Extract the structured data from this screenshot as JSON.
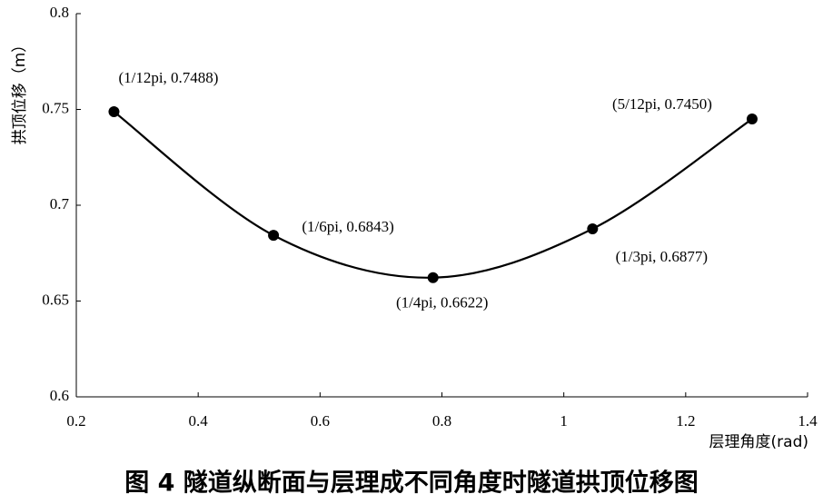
{
  "chart_data": {
    "type": "line",
    "x_label": "层理角度(rad)",
    "y_label": "拱顶位移（m）",
    "caption": "图 4  隧道纵断面与层理成不同角度时隧道拱顶位移图",
    "x": [
      0.2618,
      0.5236,
      0.7854,
      1.0472,
      1.309
    ],
    "series": [
      {
        "color": "#000000",
        "values": [
          0.7488,
          0.6843,
          0.6622,
          0.6877,
          0.745
        ],
        "value_labels": [
          "(1/12pi, 0.7488)",
          "(1/6pi, 0.6843)",
          "(1/4pi, 0.6622)",
          "(1/3pi, 0.6877)",
          "(5/12pi, 0.7450)"
        ]
      }
    ],
    "xlim": [
      0.2,
      1.4
    ],
    "xticks": [
      0.2,
      0.4,
      0.6,
      0.8,
      1,
      1.2,
      1.4
    ],
    "ylim": [
      0.6,
      0.8
    ],
    "yticks": [
      0.6,
      0.65,
      0.7,
      0.75,
      0.8
    ],
    "grid": false
  }
}
